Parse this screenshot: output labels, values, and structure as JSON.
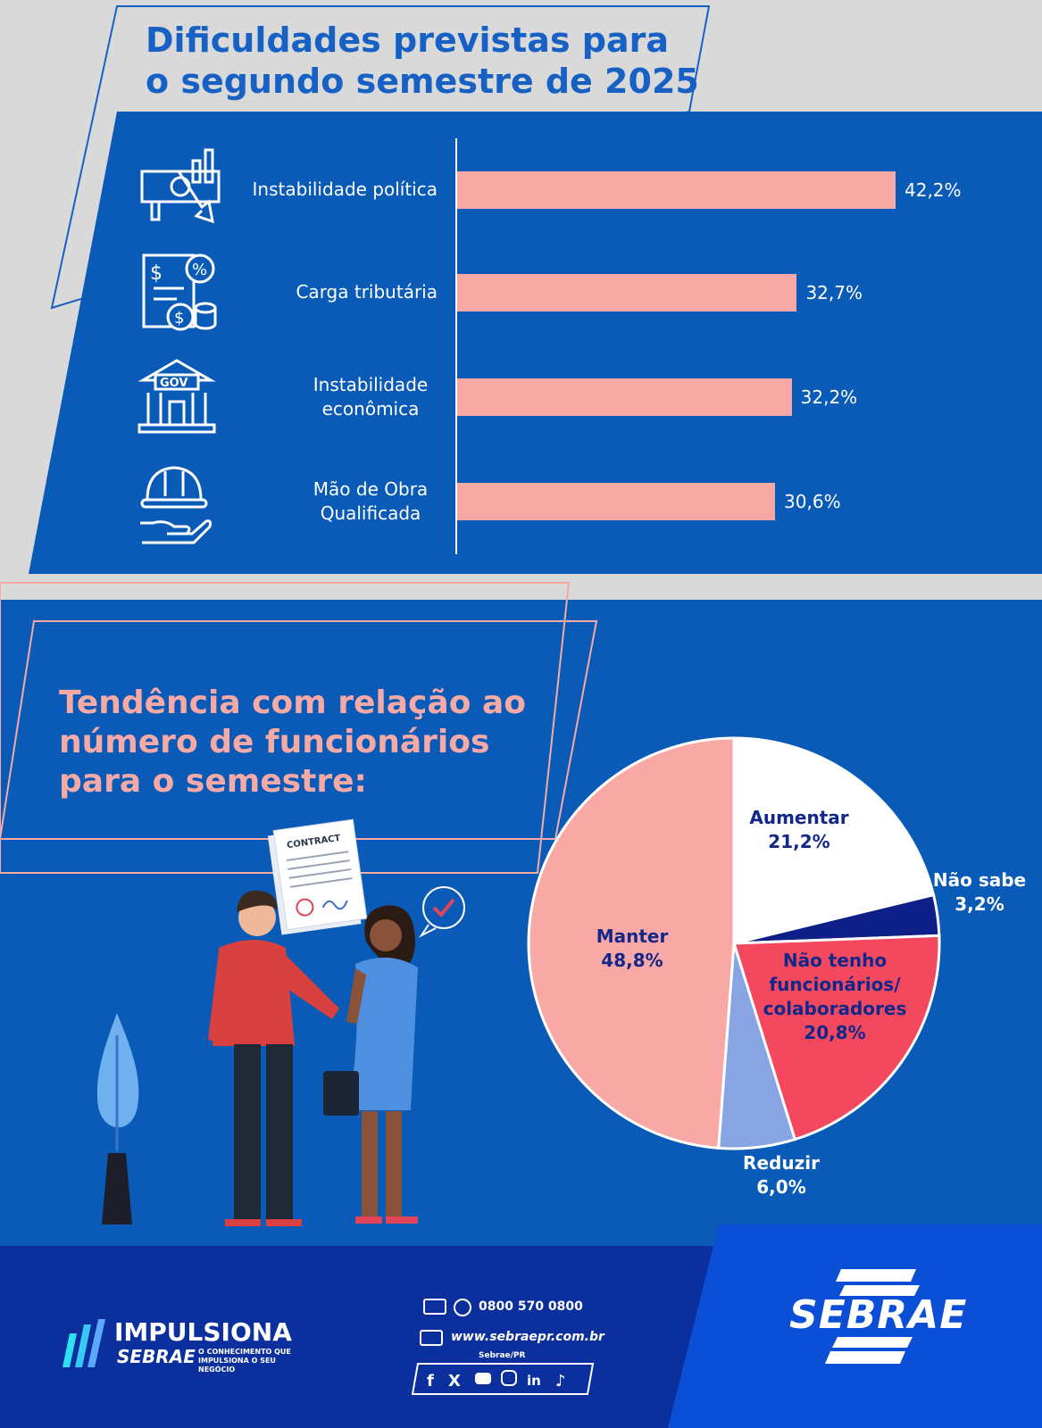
{
  "chart1": {
    "title": "Dificuldades previstas para o segundo semestre de 2025",
    "chart_data": {
      "type": "bar",
      "orientation": "horizontal",
      "categories": [
        "Instabilidade política",
        "Carga tributária",
        "Instabilidade econômica",
        "Mão de Obra Qualificada"
      ],
      "values": [
        42.2,
        32.7,
        32.2,
        30.6
      ],
      "value_labels": [
        "42,2%",
        "32,7%",
        "32,2%",
        "30,6%"
      ],
      "xlim": [
        0,
        42.2
      ],
      "color": "#f8a9a6"
    }
  },
  "chart2": {
    "title": "Tendência com relação ao número de funcionários para o semestre:",
    "chart_data": {
      "type": "pie",
      "slices": [
        {
          "label": "Aumentar",
          "value": 21.2,
          "value_label": "21,2%",
          "color": "#ffffff",
          "text_color": "#11288a"
        },
        {
          "label": "Não sabe",
          "value": 3.2,
          "value_label": "3,2%",
          "color": "#0e1f87",
          "text_color": "#ffffff"
        },
        {
          "label": "Não tenho funcionários/ colaboradores",
          "value": 20.8,
          "value_label": "20,8%",
          "color": "#f4485e",
          "text_color": "#11288a"
        },
        {
          "label": "Reduzir",
          "value": 6.0,
          "value_label": "6,0%",
          "color": "#88a4e3",
          "text_color": "#ffffff"
        },
        {
          "label": "Manter",
          "value": 48.8,
          "value_label": "48,8%",
          "color": "#f8a9a6",
          "text_color": "#11288a"
        }
      ]
    }
  },
  "illustration": {
    "contract_text": "CONTRACT"
  },
  "footer": {
    "brand_main": "IMPULSIONA",
    "brand_sub": "SEBRAE",
    "brand_tagline": "O CONHECIMENTO QUE IMPULSIONA O SEU NEGÓCIO",
    "phone": "0800 570 0800",
    "website": "www.sebraepr.com.br",
    "social_handle": "Sebrae/PR",
    "social_icons": [
      "facebook-icon",
      "x-icon",
      "youtube-icon",
      "instagram-icon",
      "linkedin-icon",
      "tiktok-icon"
    ],
    "logo": "SEBRAE"
  },
  "colors": {
    "blue": "#0a5bb8",
    "navy": "#0b2f9c",
    "pink": "#f8a9a6"
  }
}
